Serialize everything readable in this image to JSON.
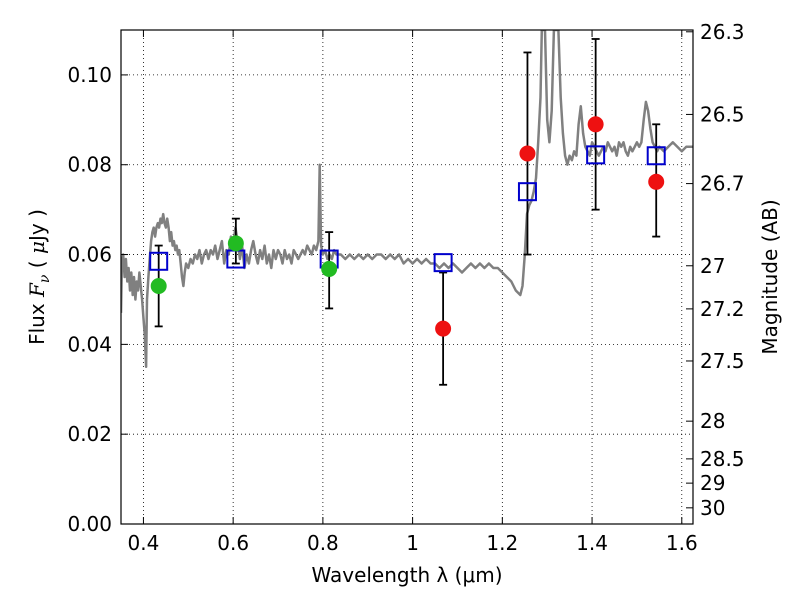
{
  "chart_data": {
    "type": "scatter",
    "xlabel": "Wavelength  λ (μm)",
    "ylabel_parts": {
      "a": "Flux  ",
      "b": "F",
      "c": "ν",
      "d": "  (  ",
      "e": "μ",
      "f": "Jy )"
    },
    "y2label": "Magnitude (AB)",
    "xlim": [
      0.35,
      1.625
    ],
    "ylim": [
      0.0,
      0.11
    ],
    "xticks": [
      {
        "v": 0.4,
        "t": "0.4"
      },
      {
        "v": 0.6,
        "t": "0.6"
      },
      {
        "v": 0.8,
        "t": "0.8"
      },
      {
        "v": 1.0,
        "t": "1"
      },
      {
        "v": 1.2,
        "t": "1.2"
      },
      {
        "v": 1.4,
        "t": "1.4"
      },
      {
        "v": 1.6,
        "t": "1.6"
      }
    ],
    "yticks": [
      {
        "v": 0.0,
        "t": "0.00"
      },
      {
        "v": 0.02,
        "t": "0.02"
      },
      {
        "v": 0.04,
        "t": "0.04"
      },
      {
        "v": 0.06,
        "t": "0.06"
      },
      {
        "v": 0.08,
        "t": "0.08"
      },
      {
        "v": 0.1,
        "t": "0.10"
      }
    ],
    "y2ticks": [
      {
        "t": "26.3",
        "flux": 0.1096
      },
      {
        "t": "26.5",
        "flux": 0.0912
      },
      {
        "t": "26.7",
        "flux": 0.0758
      },
      {
        "t": "27",
        "flux": 0.0575
      },
      {
        "t": "27.2",
        "flux": 0.0479
      },
      {
        "t": "27.5",
        "flux": 0.0363
      },
      {
        "t": "28",
        "flux": 0.0229
      },
      {
        "t": "28.5",
        "flux": 0.0145
      },
      {
        "t": "29",
        "flux": 0.0091
      },
      {
        "t": "30",
        "flux": 0.0036
      }
    ],
    "grid": true,
    "series": [
      {
        "kind": "line",
        "color": "#808080",
        "points": [
          [
            0.35,
            0.047
          ],
          [
            0.352,
            0.058
          ],
          [
            0.355,
            0.06
          ],
          [
            0.358,
            0.055
          ],
          [
            0.361,
            0.059
          ],
          [
            0.364,
            0.054
          ],
          [
            0.367,
            0.057
          ],
          [
            0.37,
            0.052
          ],
          [
            0.373,
            0.056
          ],
          [
            0.376,
            0.051
          ],
          [
            0.379,
            0.055
          ],
          [
            0.382,
            0.05
          ],
          [
            0.385,
            0.054
          ],
          [
            0.388,
            0.052
          ],
          [
            0.391,
            0.056
          ],
          [
            0.394,
            0.053
          ],
          [
            0.397,
            0.05
          ],
          [
            0.4,
            0.046
          ],
          [
            0.403,
            0.042
          ],
          [
            0.406,
            0.035
          ],
          [
            0.408,
            0.05
          ],
          [
            0.411,
            0.055
          ],
          [
            0.414,
            0.059
          ],
          [
            0.417,
            0.063
          ],
          [
            0.42,
            0.065
          ],
          [
            0.423,
            0.066
          ],
          [
            0.426,
            0.064
          ],
          [
            0.429,
            0.066
          ],
          [
            0.432,
            0.067
          ],
          [
            0.435,
            0.066
          ],
          [
            0.438,
            0.068
          ],
          [
            0.441,
            0.067
          ],
          [
            0.444,
            0.069
          ],
          [
            0.447,
            0.067
          ],
          [
            0.45,
            0.066
          ],
          [
            0.453,
            0.068
          ],
          [
            0.456,
            0.066
          ],
          [
            0.459,
            0.063
          ],
          [
            0.462,
            0.065
          ],
          [
            0.465,
            0.062
          ],
          [
            0.468,
            0.063
          ],
          [
            0.471,
            0.061
          ],
          [
            0.474,
            0.062
          ],
          [
            0.477,
            0.06
          ],
          [
            0.48,
            0.061
          ],
          [
            0.483,
            0.058
          ],
          [
            0.486,
            0.055
          ],
          [
            0.489,
            0.053
          ],
          [
            0.492,
            0.056
          ],
          [
            0.495,
            0.058
          ],
          [
            0.5,
            0.057
          ],
          [
            0.505,
            0.059
          ],
          [
            0.51,
            0.058
          ],
          [
            0.515,
            0.06
          ],
          [
            0.52,
            0.059
          ],
          [
            0.525,
            0.061
          ],
          [
            0.53,
            0.058
          ],
          [
            0.535,
            0.06
          ],
          [
            0.54,
            0.061
          ],
          [
            0.545,
            0.059
          ],
          [
            0.55,
            0.061
          ],
          [
            0.555,
            0.06
          ],
          [
            0.56,
            0.062
          ],
          [
            0.565,
            0.059
          ],
          [
            0.57,
            0.061
          ],
          [
            0.575,
            0.063
          ],
          [
            0.58,
            0.058
          ],
          [
            0.585,
            0.061
          ],
          [
            0.59,
            0.06
          ],
          [
            0.595,
            0.064
          ],
          [
            0.6,
            0.062
          ],
          [
            0.605,
            0.066
          ],
          [
            0.61,
            0.063
          ],
          [
            0.615,
            0.059
          ],
          [
            0.62,
            0.062
          ],
          [
            0.625,
            0.057
          ],
          [
            0.63,
            0.06
          ],
          [
            0.635,
            0.058
          ],
          [
            0.64,
            0.061
          ],
          [
            0.645,
            0.063
          ],
          [
            0.65,
            0.06
          ],
          [
            0.655,
            0.058
          ],
          [
            0.66,
            0.061
          ],
          [
            0.665,
            0.059
          ],
          [
            0.67,
            0.062
          ],
          [
            0.675,
            0.058
          ],
          [
            0.68,
            0.06
          ],
          [
            0.685,
            0.057
          ],
          [
            0.69,
            0.061
          ],
          [
            0.695,
            0.059
          ],
          [
            0.7,
            0.061
          ],
          [
            0.705,
            0.06
          ],
          [
            0.71,
            0.058
          ],
          [
            0.715,
            0.061
          ],
          [
            0.72,
            0.059
          ],
          [
            0.725,
            0.06
          ],
          [
            0.73,
            0.058
          ],
          [
            0.735,
            0.061
          ],
          [
            0.74,
            0.06
          ],
          [
            0.745,
            0.059
          ],
          [
            0.75,
            0.06
          ],
          [
            0.755,
            0.061
          ],
          [
            0.76,
            0.06
          ],
          [
            0.765,
            0.062
          ],
          [
            0.77,
            0.061
          ],
          [
            0.775,
            0.06
          ],
          [
            0.78,
            0.062
          ],
          [
            0.785,
            0.061
          ],
          [
            0.79,
            0.063
          ],
          [
            0.793,
            0.08
          ],
          [
            0.796,
            0.062
          ],
          [
            0.8,
            0.06
          ],
          [
            0.805,
            0.061
          ],
          [
            0.81,
            0.059
          ],
          [
            0.815,
            0.06
          ],
          [
            0.82,
            0.059
          ],
          [
            0.825,
            0.061
          ],
          [
            0.83,
            0.06
          ],
          [
            0.84,
            0.06
          ],
          [
            0.85,
            0.059
          ],
          [
            0.86,
            0.06
          ],
          [
            0.87,
            0.059
          ],
          [
            0.88,
            0.06
          ],
          [
            0.89,
            0.059
          ],
          [
            0.9,
            0.06
          ],
          [
            0.91,
            0.059
          ],
          [
            0.92,
            0.06
          ],
          [
            0.93,
            0.06
          ],
          [
            0.94,
            0.059
          ],
          [
            0.95,
            0.06
          ],
          [
            0.96,
            0.059
          ],
          [
            0.97,
            0.06
          ],
          [
            0.98,
            0.058
          ],
          [
            0.99,
            0.059
          ],
          [
            1.0,
            0.058
          ],
          [
            1.01,
            0.059
          ],
          [
            1.02,
            0.058
          ],
          [
            1.03,
            0.059
          ],
          [
            1.04,
            0.058
          ],
          [
            1.05,
            0.058
          ],
          [
            1.06,
            0.057
          ],
          [
            1.07,
            0.058
          ],
          [
            1.08,
            0.057
          ],
          [
            1.09,
            0.058
          ],
          [
            1.1,
            0.057
          ],
          [
            1.11,
            0.056
          ],
          [
            1.12,
            0.057
          ],
          [
            1.13,
            0.058
          ],
          [
            1.14,
            0.057
          ],
          [
            1.15,
            0.058
          ],
          [
            1.16,
            0.057
          ],
          [
            1.17,
            0.058
          ],
          [
            1.18,
            0.057
          ],
          [
            1.19,
            0.057
          ],
          [
            1.2,
            0.056
          ],
          [
            1.21,
            0.055
          ],
          [
            1.22,
            0.054
          ],
          [
            1.23,
            0.052
          ],
          [
            1.24,
            0.051
          ],
          [
            1.245,
            0.053
          ],
          [
            1.25,
            0.06
          ],
          [
            1.255,
            0.069
          ],
          [
            1.26,
            0.071
          ],
          [
            1.265,
            0.072
          ],
          [
            1.27,
            0.074
          ],
          [
            1.275,
            0.077
          ],
          [
            1.28,
            0.085
          ],
          [
            1.285,
            0.095
          ],
          [
            1.288,
            0.11
          ],
          [
            1.295,
            0.11
          ],
          [
            1.3,
            0.09
          ],
          [
            1.305,
            0.085
          ],
          [
            1.31,
            0.092
          ],
          [
            1.315,
            0.11
          ],
          [
            1.325,
            0.11
          ],
          [
            1.33,
            0.095
          ],
          [
            1.335,
            0.087
          ],
          [
            1.34,
            0.082
          ],
          [
            1.345,
            0.08
          ],
          [
            1.35,
            0.082
          ],
          [
            1.355,
            0.081
          ],
          [
            1.36,
            0.083
          ],
          [
            1.365,
            0.082
          ],
          [
            1.37,
            0.089
          ],
          [
            1.375,
            0.093
          ],
          [
            1.38,
            0.087
          ],
          [
            1.385,
            0.084
          ],
          [
            1.39,
            0.083
          ],
          [
            1.395,
            0.082
          ],
          [
            1.4,
            0.085
          ],
          [
            1.405,
            0.084
          ],
          [
            1.41,
            0.083
          ],
          [
            1.415,
            0.082
          ],
          [
            1.42,
            0.083
          ],
          [
            1.425,
            0.084
          ],
          [
            1.43,
            0.083
          ],
          [
            1.435,
            0.085
          ],
          [
            1.44,
            0.084
          ],
          [
            1.445,
            0.083
          ],
          [
            1.45,
            0.084
          ],
          [
            1.455,
            0.082
          ],
          [
            1.46,
            0.085
          ],
          [
            1.465,
            0.084
          ],
          [
            1.47,
            0.085
          ],
          [
            1.475,
            0.083
          ],
          [
            1.48,
            0.082
          ],
          [
            1.485,
            0.084
          ],
          [
            1.49,
            0.083
          ],
          [
            1.495,
            0.084
          ],
          [
            1.5,
            0.085
          ],
          [
            1.505,
            0.084
          ],
          [
            1.51,
            0.085
          ],
          [
            1.515,
            0.09
          ],
          [
            1.52,
            0.094
          ],
          [
            1.525,
            0.092
          ],
          [
            1.53,
            0.088
          ],
          [
            1.535,
            0.085
          ],
          [
            1.54,
            0.084
          ],
          [
            1.545,
            0.083
          ],
          [
            1.55,
            0.084
          ],
          [
            1.56,
            0.083
          ],
          [
            1.57,
            0.084
          ],
          [
            1.58,
            0.085
          ],
          [
            1.59,
            0.084
          ],
          [
            1.6,
            0.083
          ],
          [
            1.61,
            0.084
          ],
          [
            1.625,
            0.084
          ]
        ]
      },
      {
        "kind": "errorbars",
        "color": "#000000",
        "points": [
          {
            "x": 0.434,
            "lo": 0.044,
            "hi": 0.062
          },
          {
            "x": 0.606,
            "lo": 0.058,
            "hi": 0.068
          },
          {
            "x": 0.814,
            "lo": 0.048,
            "hi": 0.065
          },
          {
            "x": 1.068,
            "lo": 0.031,
            "hi": 0.056
          },
          {
            "x": 1.256,
            "lo": 0.06,
            "hi": 0.105
          },
          {
            "x": 1.408,
            "lo": 0.07,
            "hi": 0.108
          },
          {
            "x": 1.543,
            "lo": 0.064,
            "hi": 0.089
          }
        ]
      },
      {
        "kind": "open-squares",
        "color": "#0000cc",
        "points": [
          [
            0.434,
            0.0585
          ],
          [
            0.606,
            0.059
          ],
          [
            0.814,
            0.059
          ],
          [
            1.068,
            0.0582
          ],
          [
            1.256,
            0.074
          ],
          [
            1.408,
            0.0822
          ],
          [
            1.543,
            0.082
          ]
        ]
      },
      {
        "kind": "filled-circles",
        "color": "#22bb22",
        "points": [
          [
            0.434,
            0.053
          ],
          [
            0.606,
            0.0625
          ],
          [
            0.814,
            0.0568
          ]
        ]
      },
      {
        "kind": "filled-circles",
        "color": "#ee1111",
        "points": [
          [
            1.068,
            0.0435
          ],
          [
            1.256,
            0.0825
          ],
          [
            1.408,
            0.089
          ],
          [
            1.543,
            0.0762
          ]
        ]
      }
    ]
  }
}
